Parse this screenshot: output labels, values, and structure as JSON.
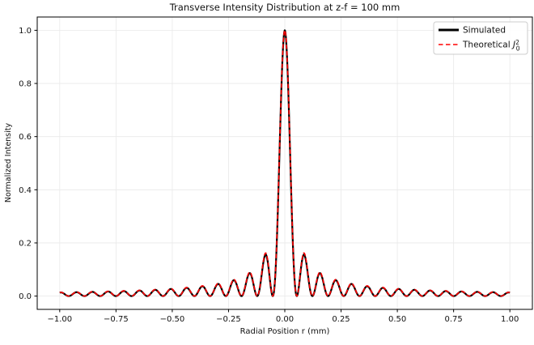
{
  "figure": {
    "background": "#ffffff",
    "spine_color": "#000000"
  },
  "chart_data": {
    "type": "line",
    "title": "Transverse Intensity Distribution at z-f = 100 mm",
    "xlabel": "Radial Position r (mm)",
    "ylabel": "Normalized Intensity",
    "xlim": [
      -1.1,
      1.1
    ],
    "ylim": [
      -0.05,
      1.05
    ],
    "x_ticks": [
      -1.0,
      -0.75,
      -0.5,
      -0.25,
      0.0,
      0.25,
      0.5,
      0.75,
      1.0
    ],
    "x_tick_labels": [
      "−1.00",
      "−0.75",
      "−0.50",
      "−0.25",
      "0.00",
      "0.25",
      "0.50",
      "0.75",
      "1.00"
    ],
    "y_ticks": [
      0.0,
      0.2,
      0.4,
      0.6,
      0.8,
      1.0
    ],
    "y_tick_labels": [
      "0.0",
      "0.2",
      "0.4",
      "0.6",
      "0.8",
      "1.0"
    ],
    "grid": true,
    "grid_color": "#e9e9e9",
    "legend_position": "upper right",
    "x_range": [
      -1.0,
      1.0
    ],
    "sample_step": 0.001,
    "function": "I(r) = J0(k*r)^2",
    "bessel_scale_k_per_mm": 45,
    "series": [
      {
        "name": "Simulated",
        "color": "#000000",
        "style": "solid",
        "linewidth": 2.2,
        "sidelobe_damping": 0.04,
        "description": "numerically simulated intensity, J0(45r)^2 with slightly lower side lobes"
      },
      {
        "name": "Theoretical J0^2",
        "color": "#ff0000",
        "style": "dashed",
        "linewidth": 1.6,
        "dash": [
          5.5,
          2.6
        ],
        "sidelobe_damping": 0,
        "description": "analytic J0(45r)^2"
      }
    ],
    "key_points": {
      "central_peak": {
        "r_mm": 0.0,
        "intensity": 1.0
      },
      "first_zero_r_mm": 0.053,
      "sidelobe_spacing_mm": 0.07,
      "sidelobe_peaks": [
        {
          "r_mm": 0.085,
          "intensity": 0.162
        },
        {
          "r_mm": 0.156,
          "intensity": 0.091
        },
        {
          "r_mm": 0.226,
          "intensity": 0.063
        },
        {
          "r_mm": 0.296,
          "intensity": 0.048
        },
        {
          "r_mm": 0.366,
          "intensity": 0.039
        },
        {
          "r_mm": 0.436,
          "intensity": 0.033
        },
        {
          "r_mm": 0.506,
          "intensity": 0.028
        },
        {
          "r_mm": 0.576,
          "intensity": 0.025
        },
        {
          "r_mm": 0.645,
          "intensity": 0.022
        },
        {
          "r_mm": 0.715,
          "intensity": 0.02
        },
        {
          "r_mm": 0.785,
          "intensity": 0.018
        },
        {
          "r_mm": 0.855,
          "intensity": 0.017
        },
        {
          "r_mm": 0.925,
          "intensity": 0.015
        },
        {
          "r_mm": 0.995,
          "intensity": 0.014
        }
      ]
    }
  },
  "legend": {
    "border_color": "#cccccc",
    "items": [
      {
        "label": "Simulated"
      }
    ],
    "theoretical": {
      "prefix": "Theoretical ",
      "symbol": "J",
      "sub": "0",
      "sup": "2"
    }
  }
}
